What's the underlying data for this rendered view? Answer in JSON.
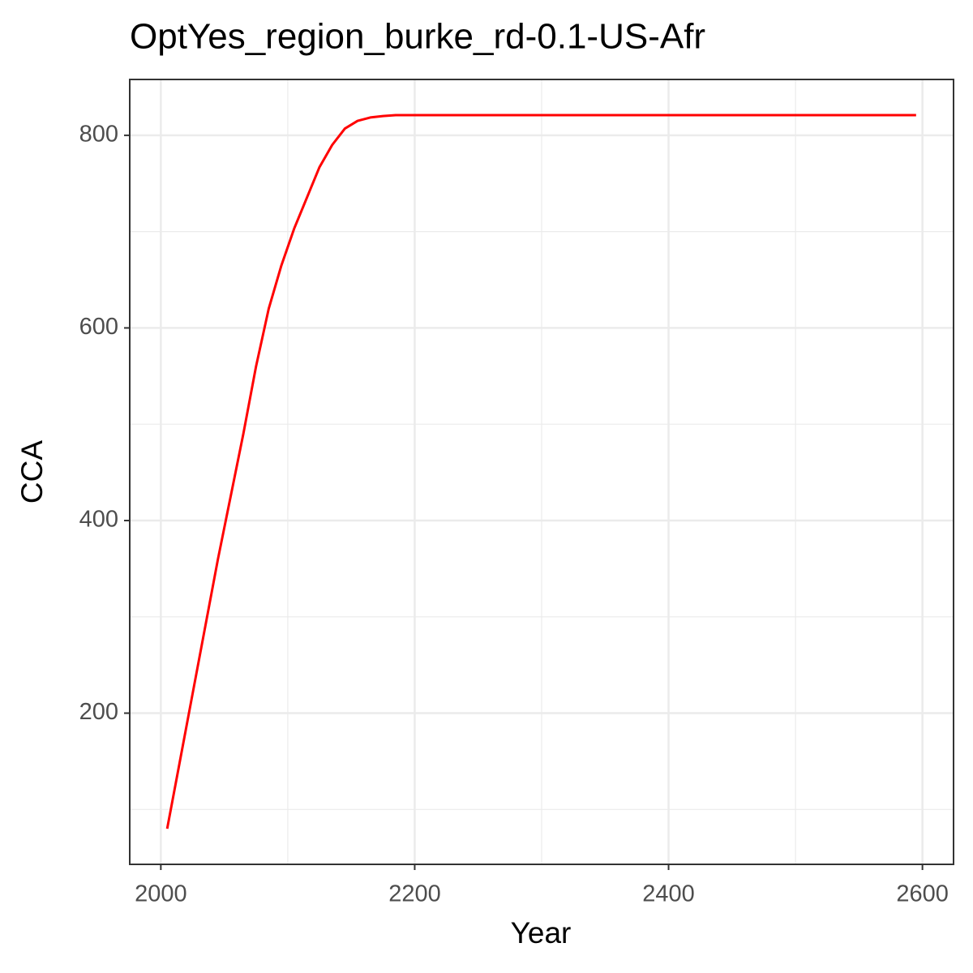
{
  "chart_data": {
    "type": "line",
    "title": "OptYes_region_burke_rd-0.1-US-Afr",
    "x_label": "Year",
    "y_label": "CCA",
    "x": [
      2005,
      2015,
      2025,
      2035,
      2045,
      2055,
      2065,
      2075,
      2085,
      2095,
      2105,
      2115,
      2125,
      2135,
      2145,
      2155,
      2165,
      2175,
      2185,
      2195,
      2205,
      2215,
      2225,
      2235,
      2245,
      2255,
      2265,
      2275,
      2285,
      2295,
      2305,
      2315,
      2325,
      2335,
      2345,
      2355,
      2365,
      2375,
      2385,
      2395,
      2405,
      2415,
      2425,
      2435,
      2445,
      2455,
      2465,
      2475,
      2485,
      2495,
      2505,
      2515,
      2525,
      2535,
      2545,
      2555,
      2565,
      2575,
      2585,
      2595
    ],
    "series": [
      {
        "name": "CCA",
        "color": "#ff0000",
        "values": [
          80,
          150,
          220,
          290,
          360,
          425,
          490,
          560,
          620,
          665,
          703,
          735,
          767,
          790,
          807,
          815,
          818.5,
          820,
          821,
          821,
          821,
          821,
          821,
          821,
          821,
          821,
          821,
          821,
          821,
          821,
          821,
          821,
          821,
          821,
          821,
          821,
          821,
          821,
          821,
          821,
          821,
          821,
          821,
          821,
          821,
          821,
          821,
          821,
          821,
          821,
          821,
          821,
          821,
          821,
          821,
          821,
          821,
          821,
          821,
          821
        ]
      }
    ],
    "xlim": [
      1975.5,
      2624.5
    ],
    "ylim": [
      43,
      858
    ],
    "xticks": [
      2000,
      2200,
      2400,
      2600
    ],
    "yticks": [
      200,
      400,
      600,
      800
    ],
    "x_minor_ticks": [
      2100,
      2300,
      2500
    ],
    "y_minor_ticks": [
      100,
      300,
      500,
      700
    ],
    "grid": true
  }
}
